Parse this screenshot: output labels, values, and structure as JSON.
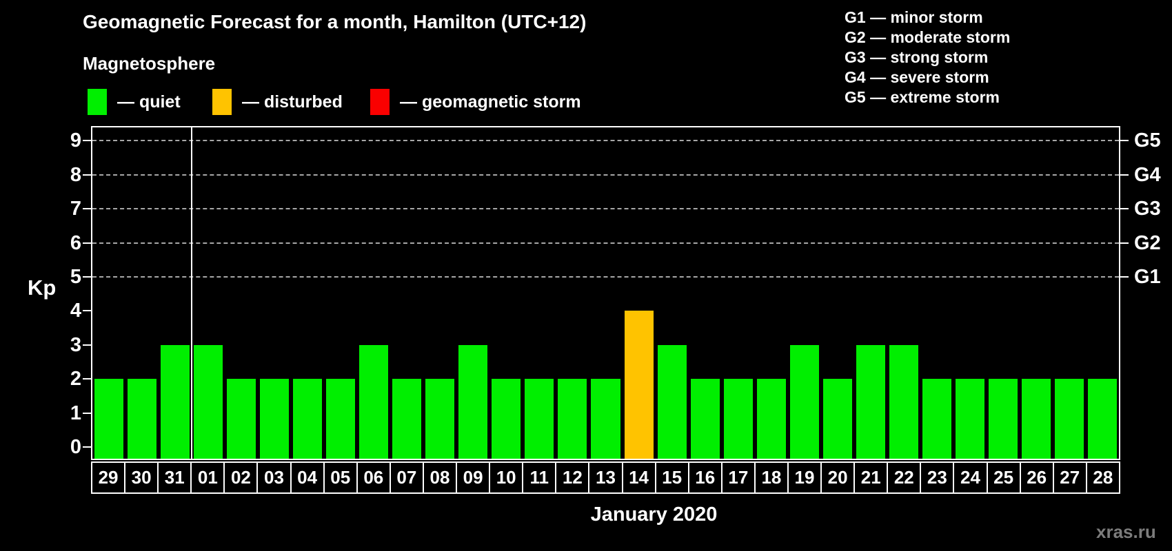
{
  "header": {
    "title": "Geomagnetic Forecast for a month, Hamilton (UTC+12)",
    "subtitle": "Magnetosphere"
  },
  "legend": {
    "items": [
      {
        "label": "— quiet",
        "color": "#00ef00"
      },
      {
        "label": "— disturbed",
        "color": "#ffc300"
      },
      {
        "label": "— geomagnetic storm",
        "color": "#fa0000"
      }
    ]
  },
  "g_legend": {
    "items": [
      {
        "label": "G1 — minor storm"
      },
      {
        "label": "G2 — moderate storm"
      },
      {
        "label": "G3 — strong storm"
      },
      {
        "label": "G4 — severe storm"
      },
      {
        "label": "G5 — extreme storm"
      }
    ]
  },
  "axis": {
    "y_label": "Kp",
    "y_ticks": [
      0,
      1,
      2,
      3,
      4,
      5,
      6,
      7,
      8,
      9
    ],
    "right_labels": [
      {
        "label": "G1",
        "kp": 5
      },
      {
        "label": "G2",
        "kp": 6
      },
      {
        "label": "G3",
        "kp": 7
      },
      {
        "label": "G4",
        "kp": 8
      },
      {
        "label": "G5",
        "kp": 9
      }
    ],
    "x_label": "January 2020"
  },
  "watermark": "xras.ru",
  "chart_data": {
    "type": "bar",
    "title": "Geomagnetic Forecast for a month, Hamilton (UTC+12)",
    "categories": [
      "29",
      "30",
      "31",
      "01",
      "02",
      "03",
      "04",
      "05",
      "06",
      "07",
      "08",
      "09",
      "10",
      "11",
      "12",
      "13",
      "14",
      "15",
      "16",
      "17",
      "18",
      "19",
      "20",
      "21",
      "22",
      "23",
      "24",
      "25",
      "26",
      "27",
      "28"
    ],
    "values": [
      2,
      2,
      3,
      3,
      2,
      2,
      2,
      2,
      3,
      2,
      2,
      3,
      2,
      2,
      2,
      2,
      4,
      3,
      2,
      2,
      2,
      3,
      2,
      3,
      3,
      2,
      2,
      2,
      2,
      2,
      2
    ],
    "statuses": [
      "quiet",
      "quiet",
      "quiet",
      "quiet",
      "quiet",
      "quiet",
      "quiet",
      "quiet",
      "quiet",
      "quiet",
      "quiet",
      "quiet",
      "quiet",
      "quiet",
      "quiet",
      "quiet",
      "disturbed",
      "quiet",
      "quiet",
      "quiet",
      "quiet",
      "quiet",
      "quiet",
      "quiet",
      "quiet",
      "quiet",
      "quiet",
      "quiet",
      "quiet",
      "quiet",
      "quiet"
    ],
    "series_colors": {
      "quiet": "#00ef00",
      "disturbed": "#ffc300",
      "storm": "#fa0000"
    },
    "xlabel": "January 2020",
    "ylabel": "Kp",
    "ylim": [
      0,
      9
    ],
    "grid": "dashed horizontal at Kp 5-9 only",
    "gridlines_kp": [
      5,
      6,
      7,
      8,
      9
    ],
    "month_separator_after_index": 2,
    "legend_position": "top-left"
  }
}
